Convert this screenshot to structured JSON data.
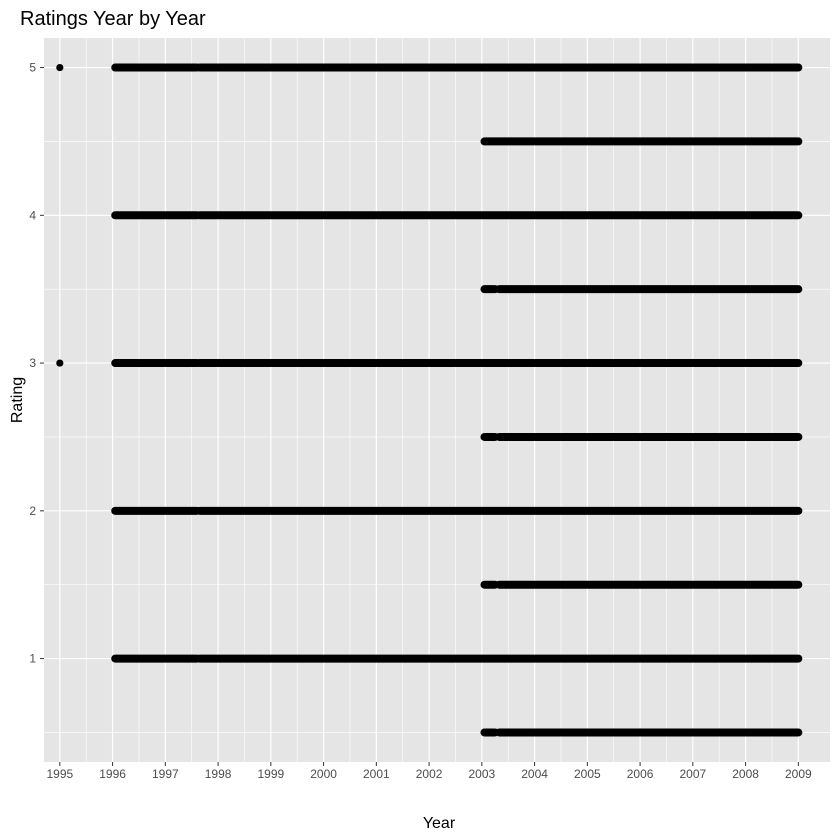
{
  "chart_data": {
    "type": "scatter",
    "title": "Ratings Year by Year",
    "xlabel": "Year",
    "ylabel": "Rating",
    "x_ticks": [
      1995,
      1996,
      1997,
      1998,
      1999,
      2000,
      2001,
      2002,
      2003,
      2004,
      2005,
      2006,
      2007,
      2008,
      2009
    ],
    "y_ticks": [
      1,
      2,
      3,
      4,
      5
    ],
    "xlim": [
      1994.7,
      2009.6
    ],
    "ylim": [
      0.3,
      5.2
    ],
    "grid": true,
    "background_color": "#e5e5e5",
    "grid_color": "#ffffff",
    "point_color": "#000000",
    "isolated_points": [
      {
        "x": 1995.0,
        "y": 5.0
      },
      {
        "x": 1995.0,
        "y": 3.0
      }
    ],
    "point_runs": [
      {
        "rating": 5.0,
        "x_start": 1996.05,
        "x_end": 1997.6
      },
      {
        "rating": 5.0,
        "x_start": 1997.65,
        "x_end": 2009.0
      },
      {
        "rating": 4.5,
        "x_start": 2003.05,
        "x_end": 2009.0
      },
      {
        "rating": 4.0,
        "x_start": 1996.05,
        "x_end": 1997.6
      },
      {
        "rating": 4.0,
        "x_start": 1997.65,
        "x_end": 2009.0
      },
      {
        "rating": 3.5,
        "x_start": 2003.05,
        "x_end": 2003.25
      },
      {
        "rating": 3.5,
        "x_start": 2003.33,
        "x_end": 2009.0
      },
      {
        "rating": 3.0,
        "x_start": 1996.05,
        "x_end": 1997.6
      },
      {
        "rating": 3.0,
        "x_start": 1997.65,
        "x_end": 2009.0
      },
      {
        "rating": 2.5,
        "x_start": 2003.05,
        "x_end": 2003.25
      },
      {
        "rating": 2.5,
        "x_start": 2003.33,
        "x_end": 2009.0
      },
      {
        "rating": 2.0,
        "x_start": 1996.05,
        "x_end": 1997.6
      },
      {
        "rating": 2.0,
        "x_start": 1997.65,
        "x_end": 2009.0
      },
      {
        "rating": 1.5,
        "x_start": 2003.05,
        "x_end": 2003.25
      },
      {
        "rating": 1.5,
        "x_start": 2003.33,
        "x_end": 2009.0
      },
      {
        "rating": 1.0,
        "x_start": 1996.05,
        "x_end": 1997.6
      },
      {
        "rating": 1.0,
        "x_start": 1997.65,
        "x_end": 2009.0
      },
      {
        "rating": 0.5,
        "x_start": 2003.05,
        "x_end": 2003.25
      },
      {
        "rating": 0.5,
        "x_start": 2003.33,
        "x_end": 2009.0
      }
    ]
  }
}
